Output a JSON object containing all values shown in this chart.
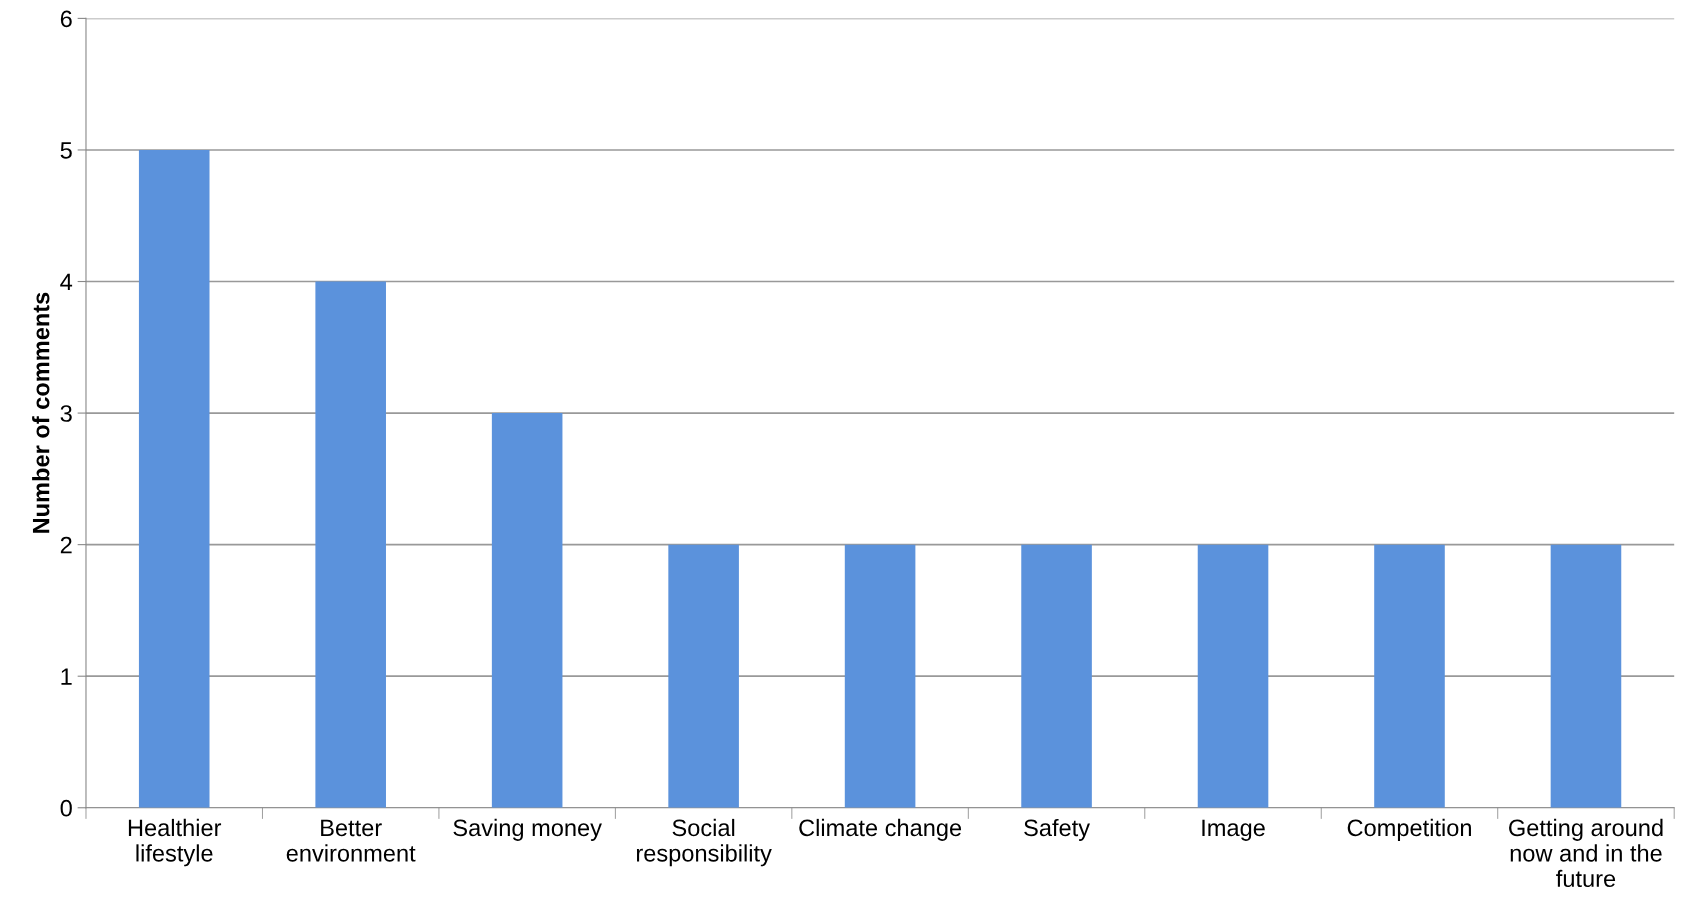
{
  "chart_data": {
    "type": "bar",
    "ylabel": "Number of comments",
    "categories": [
      "Healthier\nlifestyle",
      "Better\nenvironment",
      "Saving money",
      "Social\nresponsibility",
      "Climate change",
      "Safety",
      "Image",
      "Competition",
      "Getting around\nnow and in the\nfuture"
    ],
    "values": [
      5,
      4,
      3,
      2,
      2,
      2,
      2,
      2,
      2
    ],
    "color": "#5b92dc",
    "ylim": [
      0,
      6
    ],
    "yticks": [
      0,
      1,
      2,
      3,
      4,
      5,
      6
    ],
    "grid": "y",
    "legend": false
  }
}
